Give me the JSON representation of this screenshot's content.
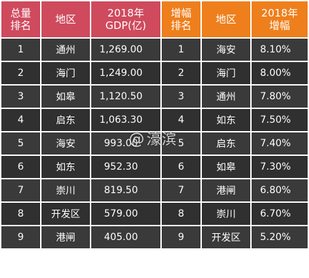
{
  "headers": {
    "total_rank": [
      "总量",
      "排名"
    ],
    "region_left": "地区",
    "gdp": [
      "2018年",
      "GDP(亿)"
    ],
    "growth_rank": [
      "增幅",
      "排名"
    ],
    "region_right": "地区",
    "growth": [
      "2018年",
      "增幅"
    ]
  },
  "rows": [
    {
      "rank": "1",
      "region": "通州",
      "gdp": "1,269.00",
      "g_rank": "1",
      "g_region": "海安",
      "g_rate": "8.10%"
    },
    {
      "rank": "2",
      "region": "海门",
      "gdp": "1,249.00",
      "g_rank": "2",
      "g_region": "海门",
      "g_rate": "8.00%"
    },
    {
      "rank": "3",
      "region": "如皋",
      "gdp": "1,120.50",
      "g_rank": "3",
      "g_region": "通州",
      "g_rate": "7.80%"
    },
    {
      "rank": "4",
      "region": "启东",
      "gdp": "1,063.30",
      "g_rank": "4",
      "g_region": "如东",
      "g_rate": "7.50%"
    },
    {
      "rank": "5",
      "region": "海安",
      "gdp": "993.00",
      "g_rank": "5",
      "g_region": "启东",
      "g_rate": "7.40%"
    },
    {
      "rank": "6",
      "region": "如东",
      "gdp": "952.30",
      "g_rank": "6",
      "g_region": "如皋",
      "g_rate": "7.30%"
    },
    {
      "rank": "7",
      "region": "崇川",
      "gdp": "819.50",
      "g_rank": "7",
      "g_region": "港闸",
      "g_rate": "6.80%"
    },
    {
      "rank": "8",
      "region": "开发区",
      "gdp": "579.00",
      "g_rank": "8",
      "g_region": "崇川",
      "g_rate": "6.70%"
    },
    {
      "rank": "9",
      "region": "港闸",
      "gdp": "405.00",
      "g_rank": "9",
      "g_region": "开发区",
      "g_rate": "5.20%"
    }
  ],
  "watermark": {
    "at": "@",
    "name": "濠滨"
  },
  "colors": {
    "header_left": "#cf4a5d",
    "header_right": "#ee7f1c",
    "row_bg": "#3a3a3a",
    "row_bg_alt": "#303030"
  }
}
